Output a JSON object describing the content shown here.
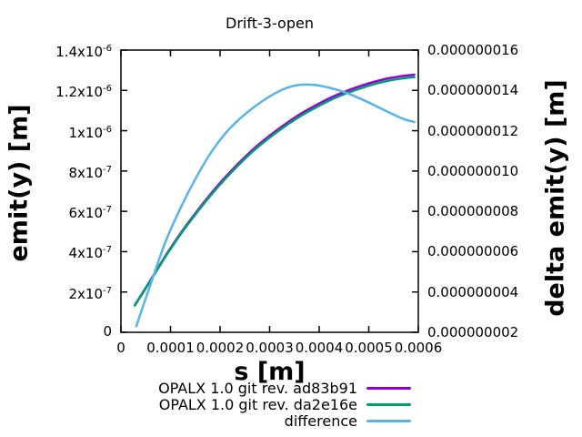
{
  "title": "Drift-3-open",
  "chart_data": {
    "type": "line",
    "title": "Drift-3-open",
    "xlabel": "s [m]",
    "ylabel_left": "emit(y) [m]",
    "ylabel_right": "delta emit(y) [m]",
    "x_range": [
      0,
      0.0006
    ],
    "y_left_range": [
      0,
      1.4e-06
    ],
    "y_right_range": [
      2e-09,
      1.6e-08
    ],
    "grid": false,
    "legend_position": "below-right",
    "x_ticks": [
      {
        "value": 0,
        "label": "0"
      },
      {
        "value": 0.0001,
        "label": "0.0001"
      },
      {
        "value": 0.0002,
        "label": "0.0002"
      },
      {
        "value": 0.0003,
        "label": "0.0003"
      },
      {
        "value": 0.0004,
        "label": "0.0004"
      },
      {
        "value": 0.0005,
        "label": "0.0005"
      },
      {
        "value": 0.0006,
        "label": "0.0006"
      }
    ],
    "y_left_ticks": [
      {
        "value": 0,
        "label": "0",
        "sup": ""
      },
      {
        "value": 2e-07,
        "label": "2x10",
        "sup": "-7"
      },
      {
        "value": 4e-07,
        "label": "4x10",
        "sup": "-7"
      },
      {
        "value": 6e-07,
        "label": "6x10",
        "sup": "-7"
      },
      {
        "value": 8e-07,
        "label": "8x10",
        "sup": "-7"
      },
      {
        "value": 1e-06,
        "label": "1x10",
        "sup": "-6"
      },
      {
        "value": 1.2e-06,
        "label": "1.2x10",
        "sup": "-6"
      },
      {
        "value": 1.4e-06,
        "label": "1.4x10",
        "sup": "-6"
      }
    ],
    "y_right_ticks": [
      {
        "value": 2e-09,
        "label": "0.000000002"
      },
      {
        "value": 4e-09,
        "label": "0.000000004"
      },
      {
        "value": 6e-09,
        "label": "0.000000006"
      },
      {
        "value": 8e-09,
        "label": "0.000000008"
      },
      {
        "value": 1e-08,
        "label": "0.000000010"
      },
      {
        "value": 1.2e-08,
        "label": "0.000000012"
      },
      {
        "value": 1.4e-08,
        "label": "0.000000014"
      },
      {
        "value": 1.6e-08,
        "label": "0.000000016"
      }
    ],
    "series": [
      {
        "name": "OPALX 1.0 git rev. ad83b91",
        "axis": "left",
        "color": "#9400d3",
        "x": [
          2.8e-05,
          6e-05,
          9e-05,
          0.00012,
          0.00015,
          0.00018,
          0.00021,
          0.00024,
          0.00027,
          0.0003,
          0.00033,
          0.00036,
          0.00039,
          0.00042,
          0.00045,
          0.00048,
          0.00051,
          0.00054,
          0.00057,
          0.000592
        ],
        "y": [
          1.35e-07,
          2.6e-07,
          3.8e-07,
          4.9e-07,
          5.9e-07,
          6.83e-07,
          7.68e-07,
          8.45e-07,
          9.15e-07,
          9.75e-07,
          1.03e-06,
          1.08e-06,
          1.122e-06,
          1.16e-06,
          1.192e-06,
          1.219e-06,
          1.242e-06,
          1.26e-06,
          1.272e-06,
          1.278e-06
        ]
      },
      {
        "name": "OPALX 1.0 git rev. da2e16e",
        "axis": "left",
        "color": "#009e73",
        "x": [
          2.8e-05,
          6e-05,
          9e-05,
          0.00012,
          0.00015,
          0.00018,
          0.00021,
          0.00024,
          0.00027,
          0.0003,
          0.00033,
          0.00036,
          0.00039,
          0.00042,
          0.00045,
          0.00048,
          0.00051,
          0.00054,
          0.00057,
          0.000592
        ],
        "y": [
          1.33e-07,
          2.57e-07,
          3.76e-07,
          4.85e-07,
          5.84e-07,
          6.76e-07,
          7.6e-07,
          8.37e-07,
          9.06e-07,
          9.66e-07,
          1.02e-06,
          1.069e-06,
          1.111e-06,
          1.149e-06,
          1.181e-06,
          1.207e-06,
          1.23e-06,
          1.248e-06,
          1.26e-06,
          1.266e-06
        ]
      },
      {
        "name": "difference",
        "axis": "right",
        "color": "#56b4e9",
        "x": [
          3.1e-05,
          6e-05,
          9e-05,
          0.00012,
          0.00015,
          0.00018,
          0.00021,
          0.00024,
          0.00027,
          0.0003,
          0.00033,
          0.00036,
          0.00039,
          0.00042,
          0.00045,
          0.00048,
          0.00051,
          0.00054,
          0.00057,
          0.000592
        ],
        "y": [
          2.3e-09,
          4.4e-09,
          6.5e-09,
          8.15e-09,
          9.6e-09,
          1.085e-08,
          1.185e-08,
          1.26e-08,
          1.32e-08,
          1.37e-08,
          1.408e-08,
          1.427e-08,
          1.427e-08,
          1.413e-08,
          1.392e-08,
          1.362e-08,
          1.328e-08,
          1.292e-08,
          1.258e-08,
          1.243e-08
        ]
      }
    ]
  },
  "colors": {
    "axis": "#000000",
    "background": "#ffffff",
    "series_purple": "#9400d3",
    "series_green": "#009e73",
    "series_blue": "#56b4e9"
  }
}
